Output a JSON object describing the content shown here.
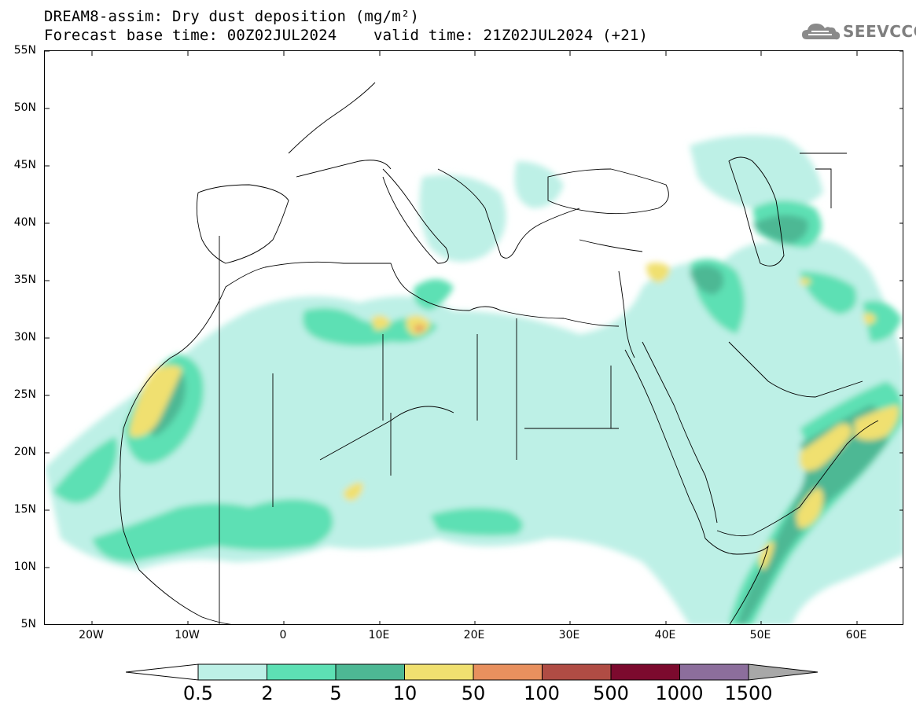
{
  "title": {
    "line1": "DREAM8-assim: Dry dust deposition (mg/m²)",
    "line2": "Forecast base time: 00Z02JUL2024    valid time: 21Z02JUL2024 (+21)"
  },
  "logo": {
    "text": "SEEVCCC",
    "icon": "cloud-logo-icon"
  },
  "axes": {
    "lat_labels": [
      "55N",
      "50N",
      "45N",
      "40N",
      "35N",
      "30N",
      "25N",
      "20N",
      "15N",
      "10N",
      "5N"
    ],
    "lon_labels": [
      "20W",
      "10W",
      "0",
      "10E",
      "20E",
      "30E",
      "40E",
      "50E",
      "60E"
    ]
  },
  "colorbar": {
    "labels": [
      "0.5",
      "2",
      "5",
      "10",
      "50",
      "100",
      "500",
      "1000",
      "1500"
    ],
    "colors": [
      "#bdf0e6",
      "#5de0b4",
      "#4db894",
      "#f0e070",
      "#e8905e",
      "#b04c44",
      "#7c0a2e",
      "#8c6e9c"
    ],
    "under_color": "#ffffff",
    "over_color": "#a8a8a8"
  },
  "field_colors": {
    "level1": "#bdf0e6",
    "level2": "#5de0b4",
    "level3": "#4db894",
    "level4": "#f0e070",
    "level5": "#e8905e"
  }
}
